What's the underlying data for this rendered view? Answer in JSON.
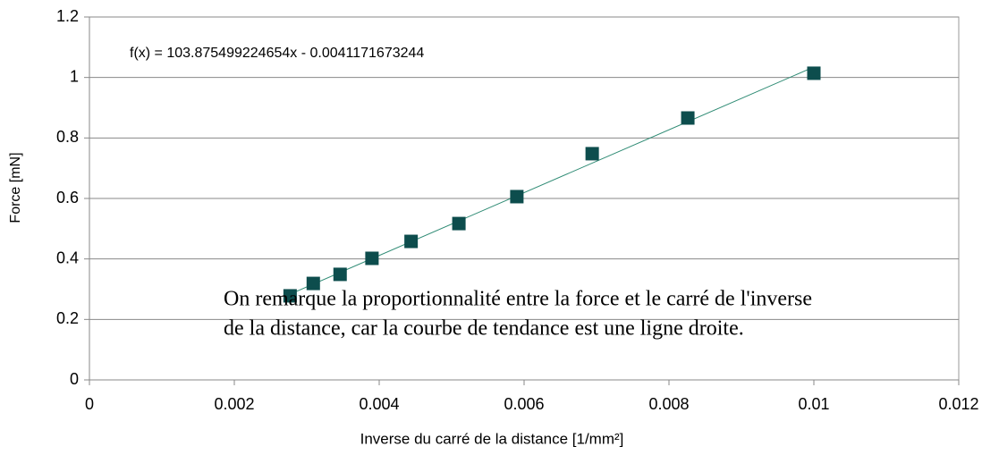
{
  "chart_data": {
    "type": "scatter",
    "xlabel": "Inverse du carré de la distance [1/mm²]",
    "ylabel": "Force [mN]",
    "annotations": [
      "f(x) = 103.875499224654x - 0.0041171673244",
      "On remarque la proportionnalité entre la force et le carré de l'inverse",
      "de la distance, car la courbe de tendance est une ligne droite."
    ],
    "series": [
      {
        "color": "#0d4d4d",
        "x": [
          0.00277,
          0.00309,
          0.00346,
          0.0039,
          0.00444,
          0.0051,
          0.0059,
          0.00694,
          0.00826,
          0.01
        ],
        "values": [
          0.278,
          0.319,
          0.349,
          0.402,
          0.458,
          0.517,
          0.606,
          0.748,
          0.866,
          1.014
        ]
      }
    ],
    "trendline": {
      "slope": 103.875499224654,
      "intercept": -0.0041171673244,
      "color": "#2e8b74"
    },
    "xlim": [
      0,
      0.012
    ],
    "xticks": [
      0,
      0.002,
      0.004,
      0.006,
      0.008,
      0.01,
      0.012
    ],
    "ylim": [
      0,
      1.2
    ],
    "yticks": [
      0,
      0.2,
      0.4,
      0.6,
      0.8,
      1,
      1.2
    ],
    "grid": true
  }
}
